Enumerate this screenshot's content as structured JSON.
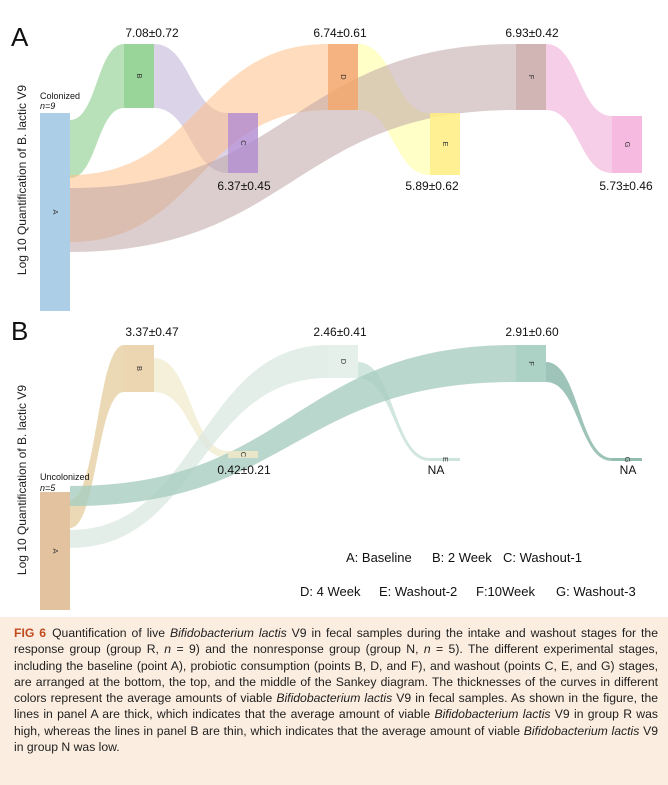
{
  "chart_data": [
    {
      "type": "sankey",
      "panel_label": "A",
      "ylabel": "Log 10 Quantification of B. lactic V9",
      "group_label": "Colonized",
      "n_label": "n=9",
      "nodes": [
        {
          "id": "A",
          "value_label": ""
        },
        {
          "id": "B",
          "value_label": "7.08±0.72",
          "mean": 7.08,
          "sd": 0.72
        },
        {
          "id": "C",
          "value_label": "6.37±0.45",
          "mean": 6.37,
          "sd": 0.45
        },
        {
          "id": "D",
          "value_label": "6.74±0.61",
          "mean": 6.74,
          "sd": 0.61
        },
        {
          "id": "E",
          "value_label": "5.89±0.62",
          "mean": 5.89,
          "sd": 0.62
        },
        {
          "id": "F",
          "value_label": "6.93±0.42",
          "mean": 6.93,
          "sd": 0.42
        },
        {
          "id": "G",
          "value_label": "5.73±0.46",
          "mean": 5.73,
          "sd": 0.46
        }
      ],
      "links": [
        {
          "from": "A",
          "to": "B",
          "color": "#7fc97f"
        },
        {
          "from": "B",
          "to": "C",
          "color": "#beaed4"
        },
        {
          "from": "A",
          "to": "D",
          "color": "#fdc086"
        },
        {
          "from": "D",
          "to": "E",
          "color": "#ffff99"
        },
        {
          "from": "A",
          "to": "F",
          "color": "#bfa6a6"
        },
        {
          "from": "F",
          "to": "G",
          "color": "#f0a6d3"
        }
      ]
    },
    {
      "type": "sankey",
      "panel_label": "B",
      "ylabel": "Log 10 Quantification of B. lactic V9",
      "group_label": "Uncolonized",
      "n_label": "n=5",
      "nodes": [
        {
          "id": "A",
          "value_label": ""
        },
        {
          "id": "B",
          "value_label": "3.37±0.47",
          "mean": 3.37,
          "sd": 0.47
        },
        {
          "id": "C",
          "value_label": "0.42±0.21",
          "mean": 0.42,
          "sd": 0.21
        },
        {
          "id": "D",
          "value_label": "2.46±0.41",
          "mean": 2.46,
          "sd": 0.41
        },
        {
          "id": "E",
          "value_label": "NA",
          "mean": null
        },
        {
          "id": "F",
          "value_label": "2.91±0.60",
          "mean": 2.91,
          "sd": 0.6
        },
        {
          "id": "G",
          "value_label": "NA",
          "mean": null
        }
      ],
      "links": [
        {
          "from": "A",
          "to": "B",
          "color": "#e6cfa2"
        },
        {
          "from": "B",
          "to": "C",
          "color": "#efe8c4"
        },
        {
          "from": "A",
          "to": "D",
          "color": "#dbe8e0"
        },
        {
          "from": "D",
          "to": "E",
          "color": "#c3ddd6"
        },
        {
          "from": "A",
          "to": "F",
          "color": "#a9cdc1"
        },
        {
          "from": "F",
          "to": "G",
          "color": "#8db9ac"
        }
      ],
      "legend": [
        "A: Baseline",
        "B: 2 Week",
        "C: Washout-1",
        "D: 4 Week",
        "E: Washout-2",
        "F:10Week",
        "G: Washout-3"
      ]
    }
  ],
  "caption": {
    "label": "FIG 6",
    "parts": [
      {
        "t": "Quantification of live "
      },
      {
        "t": "Bifidobacterium lactis",
        "i": true
      },
      {
        "t": " V9 in fecal samples during the intake and washout stages for the response group (group R, "
      },
      {
        "t": "n",
        "i": true
      },
      {
        "t": " = 9) and the nonresponse group (group N, "
      },
      {
        "t": "n",
        "i": true
      },
      {
        "t": " = 5). The different experimental stages, including the baseline (point A), probiotic consumption (points B, D, and F), and washout (points C, E, and G) stages, are arranged at the bottom, the top, and the middle of the Sankey diagram. The thicknesses of the curves in different colors represent the average amounts of viable "
      },
      {
        "t": "Bifidobacterium lactis",
        "i": true
      },
      {
        "t": " V9 in fecal samples. As shown in the figure, the lines in panel A are thick, which indicates that the average amount of viable "
      },
      {
        "t": "Bifidobacterium lactis",
        "i": true
      },
      {
        "t": " V9 in group R was high, whereas the lines in panel B are thin, which indicates that the average amount of viable "
      },
      {
        "t": "Bifidobacterium lactis",
        "i": true
      },
      {
        "t": " V9 in group N was low."
      }
    ]
  }
}
